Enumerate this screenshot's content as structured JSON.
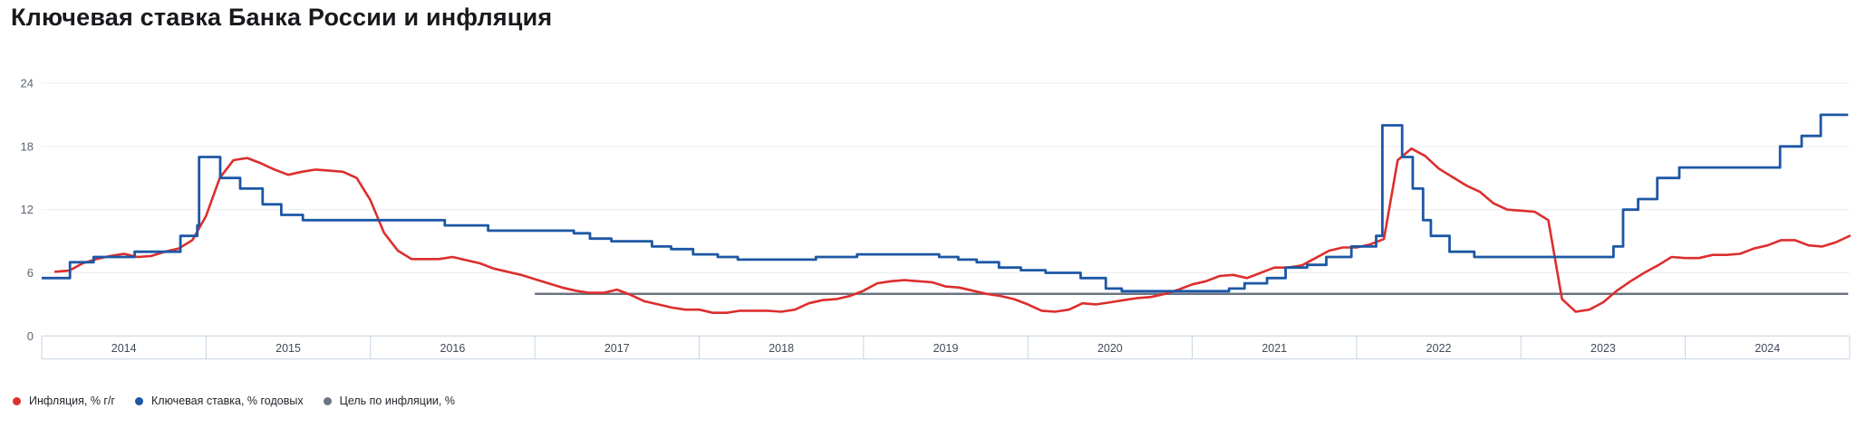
{
  "title": "Ключевая ставка Банка России и инфляция",
  "legend": [
    {
      "label": "Инфляция, % г/г",
      "color": "#dc2e2e"
    },
    {
      "label": "Ключевая ставка, % годовых",
      "color": "#1d57a5"
    },
    {
      "label": "Цель по инфляции, %",
      "color": "#6c7482"
    }
  ],
  "axes": {
    "y_ticks": [
      "24",
      "18",
      "12",
      "6"
    ],
    "y_zero_label": "0",
    "x_ticks": [
      "2014",
      "2015",
      "2016",
      "2017",
      "2018",
      "2019",
      "2020",
      "2021",
      "2022",
      "2023",
      "2024"
    ]
  },
  "colors": {
    "inflation_line": "#dc2e2e",
    "key_rate_line": "#1d57a5",
    "target_line": "#6c7482",
    "gridline": "#ededf0",
    "axis_band_border": "#c7d4e4",
    "y_label": "#5d6673",
    "x_label": "#414a57",
    "title_text": "#17191c",
    "legend_text": "#22262b",
    "background": "#ffffff"
  },
  "chart_data": {
    "type": "line",
    "title": "Ключевая ставка Банка России и инфляция",
    "xlabel": "",
    "ylabel": "",
    "x_range_years": [
      2014,
      2025
    ],
    "ylim": [
      0,
      26
    ],
    "grid": "horizontal",
    "legend_position": "bottom-left",
    "series": [
      {
        "name": "Инфляция, % г/г",
        "type": "line",
        "color": "#dc2e2e",
        "x_start_year": 2014,
        "x_step_months": 1,
        "plotted_at": "month-end",
        "monthly_values": [
          6.1,
          6.2,
          6.9,
          7.3,
          7.6,
          7.8,
          7.5,
          7.6,
          8.0,
          8.3,
          9.1,
          11.4,
          15.0,
          16.7,
          16.9,
          16.4,
          15.8,
          15.3,
          15.6,
          15.8,
          15.7,
          15.6,
          15.0,
          12.9,
          9.8,
          8.1,
          7.3,
          7.3,
          7.3,
          7.5,
          7.2,
          6.9,
          6.4,
          6.1,
          5.8,
          5.4,
          5.0,
          4.6,
          4.3,
          4.1,
          4.1,
          4.4,
          3.9,
          3.3,
          3.0,
          2.7,
          2.5,
          2.5,
          2.2,
          2.2,
          2.4,
          2.4,
          2.4,
          2.3,
          2.5,
          3.1,
          3.4,
          3.5,
          3.8,
          4.3,
          5.0,
          5.2,
          5.3,
          5.2,
          5.1,
          4.7,
          4.6,
          4.3,
          4.0,
          3.8,
          3.5,
          3.0,
          2.4,
          2.3,
          2.5,
          3.1,
          3.0,
          3.2,
          3.4,
          3.6,
          3.7,
          4.0,
          4.4,
          4.9,
          5.2,
          5.7,
          5.8,
          5.5,
          6.0,
          6.5,
          6.5,
          6.7,
          7.4,
          8.1,
          8.4,
          8.4,
          8.7,
          9.2,
          16.7,
          17.8,
          17.1,
          15.9,
          15.1,
          14.3,
          13.7,
          12.6,
          12.0,
          11.9,
          11.8,
          11.0,
          3.5,
          2.3,
          2.5,
          3.2,
          4.3,
          5.2,
          6.0,
          6.7,
          7.5,
          7.4,
          7.4,
          7.7,
          7.7,
          7.8,
          8.3,
          8.6,
          9.1,
          9.1,
          8.6,
          8.5,
          8.9,
          9.5
        ]
      },
      {
        "name": "Ключевая ставка, % годовых",
        "type": "step",
        "color": "#1d57a5",
        "end_date": "2024-12-28",
        "points": [
          [
            "2014-01-01",
            5.5
          ],
          [
            "2014-03-03",
            7.0
          ],
          [
            "2014-04-25",
            7.5
          ],
          [
            "2014-07-25",
            8.0
          ],
          [
            "2014-11-05",
            9.5
          ],
          [
            "2014-12-12",
            10.5
          ],
          [
            "2014-12-16",
            17.0
          ],
          [
            "2015-02-02",
            15.0
          ],
          [
            "2015-03-16",
            14.0
          ],
          [
            "2015-05-05",
            12.5
          ],
          [
            "2015-06-16",
            11.5
          ],
          [
            "2015-08-03",
            11.0
          ],
          [
            "2016-06-14",
            10.5
          ],
          [
            "2016-09-19",
            10.0
          ],
          [
            "2017-03-27",
            9.75
          ],
          [
            "2017-05-02",
            9.25
          ],
          [
            "2017-06-19",
            9.0
          ],
          [
            "2017-09-18",
            8.5
          ],
          [
            "2017-10-30",
            8.25
          ],
          [
            "2017-12-18",
            7.75
          ],
          [
            "2018-02-12",
            7.5
          ],
          [
            "2018-03-26",
            7.25
          ],
          [
            "2018-09-17",
            7.5
          ],
          [
            "2018-12-17",
            7.75
          ],
          [
            "2019-06-17",
            7.5
          ],
          [
            "2019-07-29",
            7.25
          ],
          [
            "2019-09-09",
            7.0
          ],
          [
            "2019-10-28",
            6.5
          ],
          [
            "2019-12-16",
            6.25
          ],
          [
            "2020-02-10",
            6.0
          ],
          [
            "2020-04-27",
            5.5
          ],
          [
            "2020-06-22",
            4.5
          ],
          [
            "2020-07-27",
            4.25
          ],
          [
            "2021-03-22",
            4.5
          ],
          [
            "2021-04-26",
            5.0
          ],
          [
            "2021-06-15",
            5.5
          ],
          [
            "2021-07-26",
            6.5
          ],
          [
            "2021-09-13",
            6.75
          ],
          [
            "2021-10-25",
            7.5
          ],
          [
            "2021-12-20",
            8.5
          ],
          [
            "2022-02-14",
            9.5
          ],
          [
            "2022-02-28",
            20.0
          ],
          [
            "2022-04-11",
            17.0
          ],
          [
            "2022-05-04",
            14.0
          ],
          [
            "2022-05-27",
            11.0
          ],
          [
            "2022-06-14",
            9.5
          ],
          [
            "2022-07-25",
            8.0
          ],
          [
            "2022-09-19",
            7.5
          ],
          [
            "2023-07-24",
            8.5
          ],
          [
            "2023-08-15",
            12.0
          ],
          [
            "2023-09-18",
            13.0
          ],
          [
            "2023-10-30",
            15.0
          ],
          [
            "2023-12-18",
            16.0
          ],
          [
            "2024-07-29",
            18.0
          ],
          [
            "2024-09-16",
            19.0
          ],
          [
            "2024-10-28",
            21.0
          ]
        ]
      },
      {
        "name": "Цель по инфляции, %",
        "type": "line",
        "color": "#6c7482",
        "points": [
          [
            "2017-01-01",
            4.0
          ],
          [
            "2024-12-28",
            4.0
          ]
        ]
      }
    ]
  }
}
